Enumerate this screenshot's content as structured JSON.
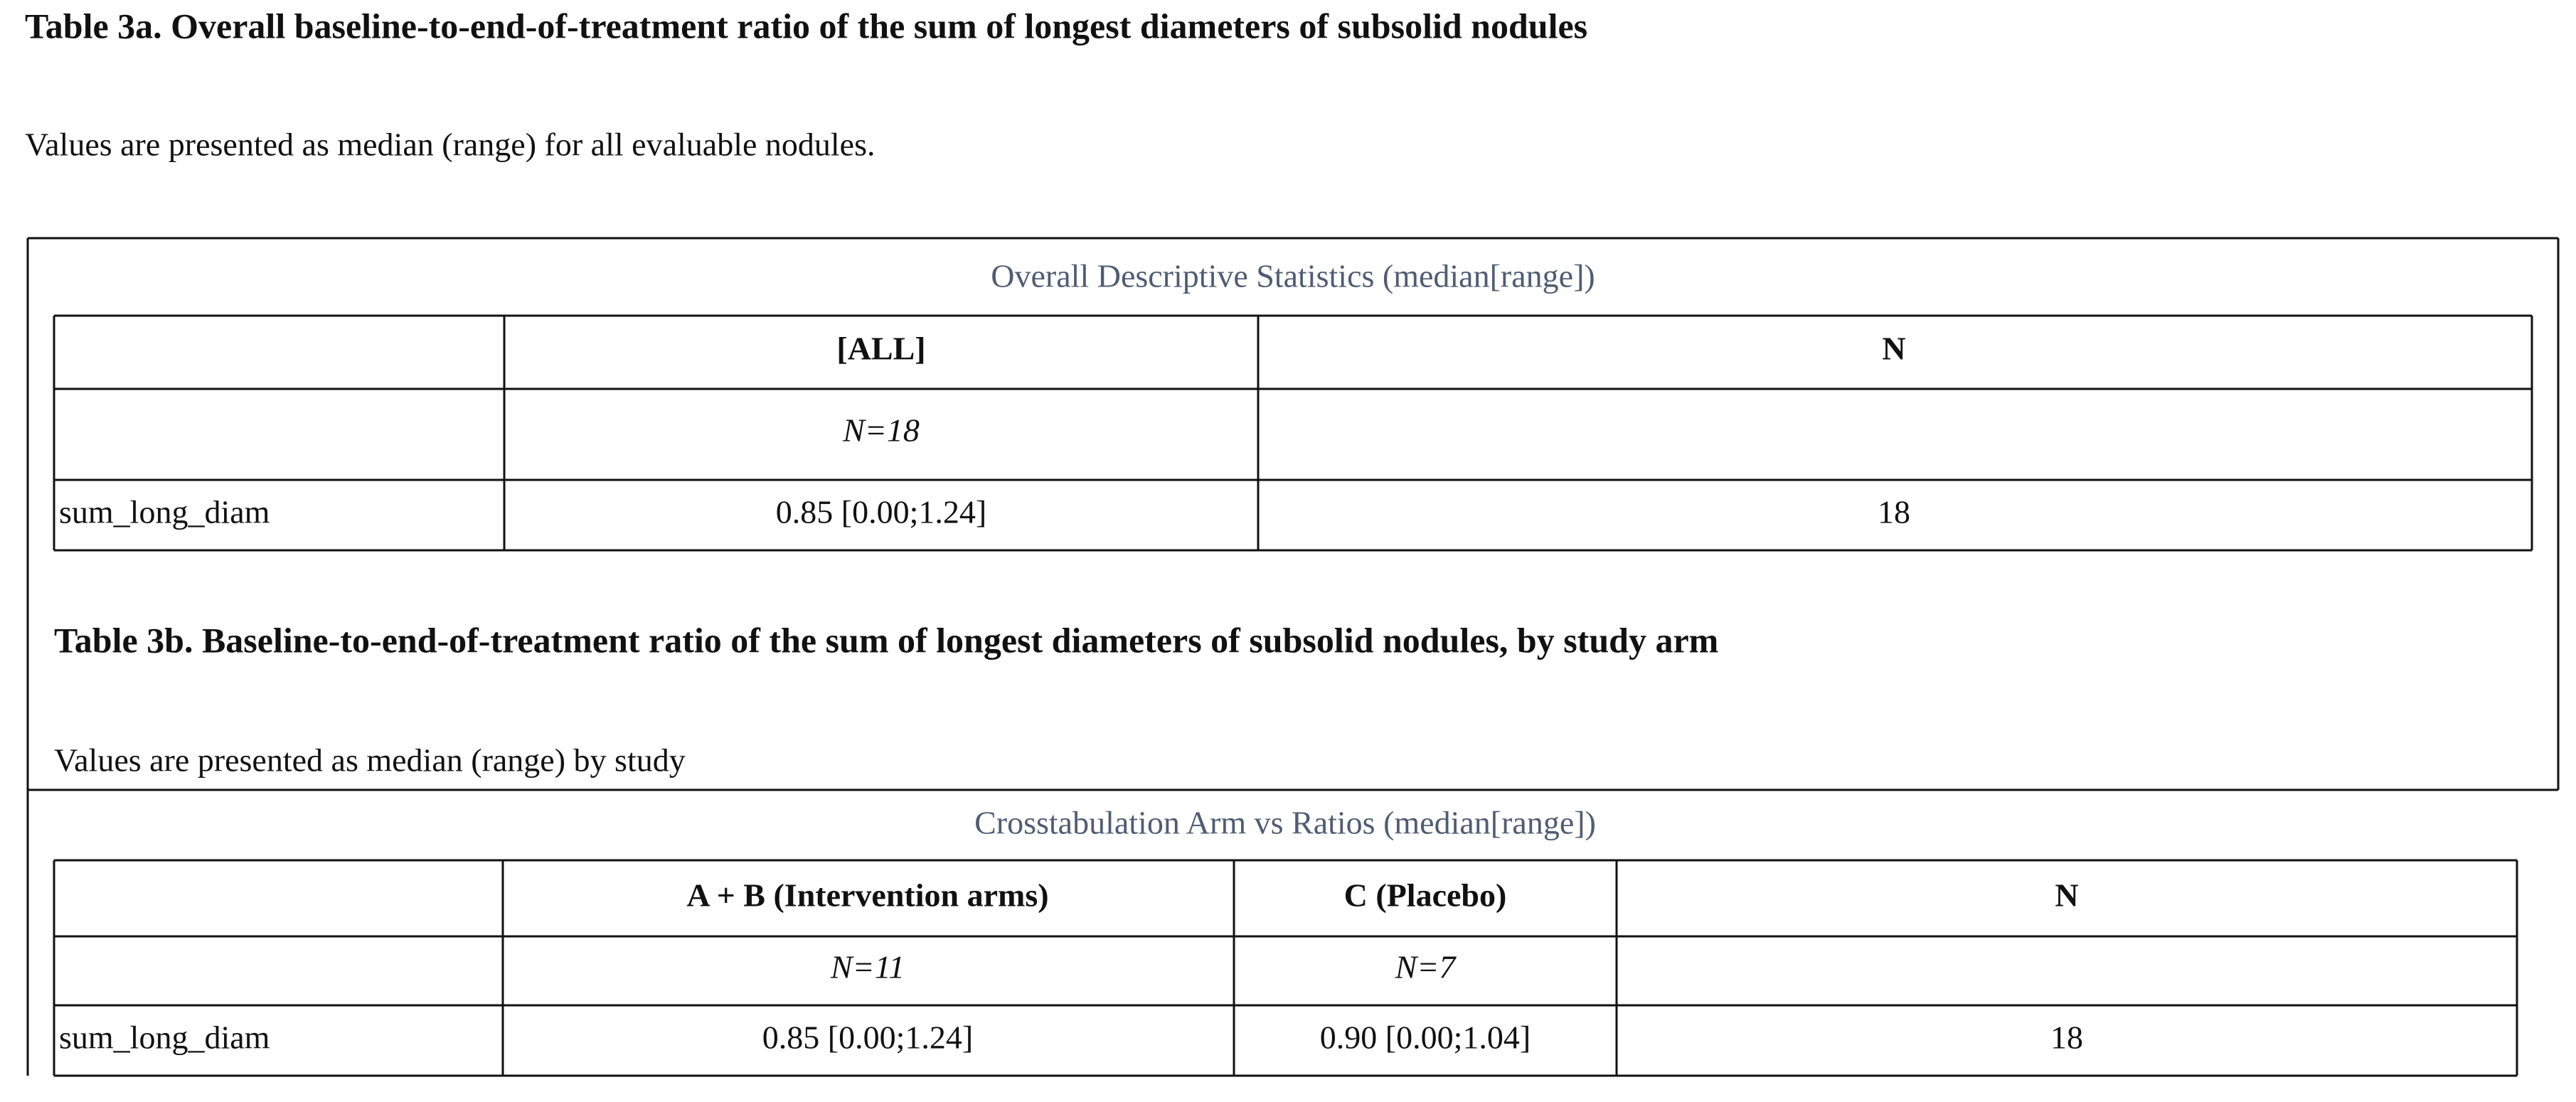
{
  "table_3a": {
    "title": "Table 3a. Overall baseline-to-end-of-treatment ratio of the sum of longest diameters of subsolid nodules",
    "note": "Values are presented as median (range) for all evaluable nodules.",
    "caption": "Overall Descriptive Statistics (median[range])",
    "header": [
      "[ALL]",
      "N"
    ],
    "subheader": [
      "N=18"
    ],
    "rows": [
      [
        "sum_long_diam",
        "0.85 [0.00;1.24]",
        "18"
      ]
    ]
  },
  "table_3b": {
    "title": "Table 3b. Baseline-to-end-of-treatment ratio of the sum of longest diameters of subsolid nodules, by study arm",
    "note": "Values are presented as median (range) by study",
    "caption": "Crosstabulation Arm vs Ratios (median[range])",
    "header": [
      "A + B (Intervention arms)",
      "C (Placebo)",
      "N"
    ],
    "subheader": [
      "N=11",
      "N=7"
    ],
    "rows": [
      [
        "sum_long_diam",
        "0.85 [0.00;1.24]",
        "0.90 [0.00;1.04]",
        "18"
      ]
    ]
  }
}
